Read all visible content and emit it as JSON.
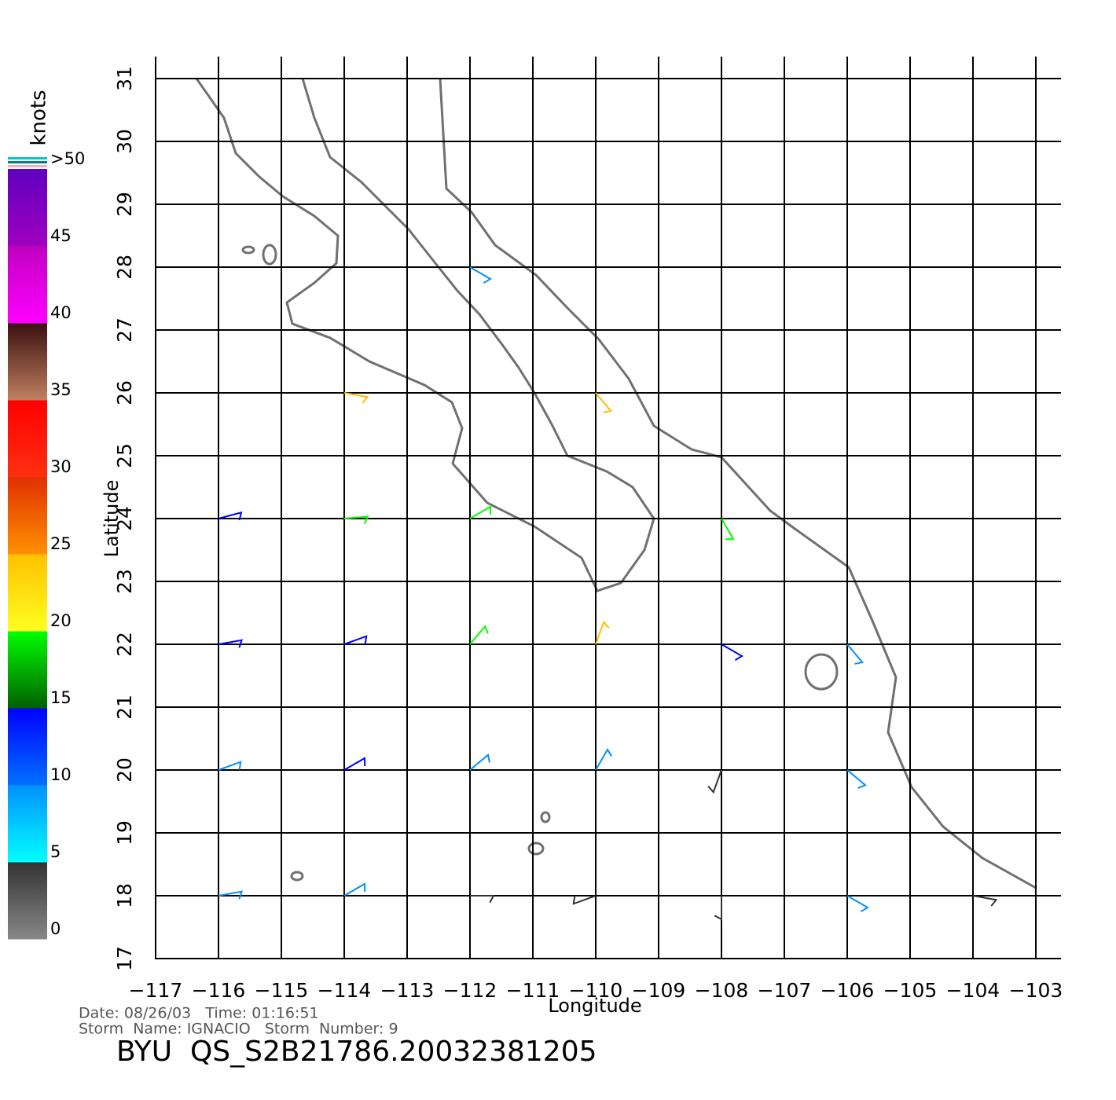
{
  "map": {
    "title": "BYU  QS_S2B21786.20032381205",
    "info_line_1": "Date: 08/26/03   Time: 01:16:51",
    "info_line_2": "Storm  Name: IGNACIO   Storm  Number: 9",
    "xlabel": "Longitude",
    "ylabel": "Latitude",
    "xlim": [
      -117,
      -103
    ],
    "ylim": [
      17,
      31
    ],
    "xticks": [
      {
        "value": -117,
        "label": "−117"
      },
      {
        "value": -116,
        "label": "−116"
      },
      {
        "value": -115,
        "label": "−115"
      },
      {
        "value": -114,
        "label": "−114"
      },
      {
        "value": -113,
        "label": "−113"
      },
      {
        "value": -112,
        "label": "−112"
      },
      {
        "value": -111,
        "label": "−111"
      },
      {
        "value": -110,
        "label": "−110"
      },
      {
        "value": -109,
        "label": "−109"
      },
      {
        "value": -108,
        "label": "−108"
      },
      {
        "value": -107,
        "label": "−107"
      },
      {
        "value": -106,
        "label": "−106"
      },
      {
        "value": -105,
        "label": "−105"
      },
      {
        "value": -104,
        "label": "−104"
      },
      {
        "value": -103,
        "label": "−103"
      }
    ],
    "yticks": [
      17,
      18,
      19,
      20,
      21,
      22,
      23,
      24,
      25,
      26,
      27,
      28,
      29,
      30,
      31
    ],
    "grid": true,
    "colorbar": {
      "label": "knots",
      "ticks": [
        0,
        5,
        10,
        15,
        20,
        25,
        30,
        35,
        40,
        45,
        {
          "value": 50,
          "label": ">50"
        }
      ],
      "colors": [
        [
          "#888888",
          "#333333"
        ],
        [
          "#00ffff",
          "#0090ff"
        ],
        [
          "#0070ff",
          "#0000ff"
        ],
        [
          "#006000",
          "#00ff00"
        ],
        [
          "#ffff20",
          "#ffc000"
        ],
        [
          "#ff9000",
          "#e03000"
        ],
        [
          "#ff3010",
          "#ff0000"
        ],
        [
          "#c08060",
          "#3a1010"
        ],
        [
          "#ff00ff",
          "#c000c0"
        ],
        [
          "#a000c0",
          "#6000c0"
        ]
      ]
    },
    "wind": {
      "lons": [
        -116,
        -114,
        -112,
        -110,
        -108,
        -106,
        -104
      ],
      "lats": [
        28,
        26,
        24,
        22,
        20,
        18
      ],
      "speed": [
        [
          null,
          null,
          8,
          null,
          null,
          null,
          null
        ],
        [
          null,
          22,
          null,
          20,
          null,
          null,
          null
        ],
        [
          12,
          17,
          18,
          null,
          18,
          null,
          null
        ],
        [
          12,
          11,
          17,
          20,
          12,
          8,
          null
        ],
        [
          8,
          10,
          9,
          7,
          4,
          7,
          null
        ],
        [
          9,
          7,
          4,
          4,
          4,
          6,
          3
        ]
      ],
      "direction": [
        [
          null,
          null,
          120,
          null,
          null,
          null,
          null
        ],
        [
          null,
          100,
          null,
          140,
          null,
          null,
          null
        ],
        [
          75,
          85,
          60,
          null,
          150,
          null,
          null
        ],
        [
          80,
          70,
          40,
          20,
          120,
          140,
          null
        ],
        [
          70,
          60,
          50,
          30,
          200,
          130,
          null
        ],
        [
          80,
          60,
          90,
          250,
          180,
          120,
          100
        ]
      ]
    }
  }
}
